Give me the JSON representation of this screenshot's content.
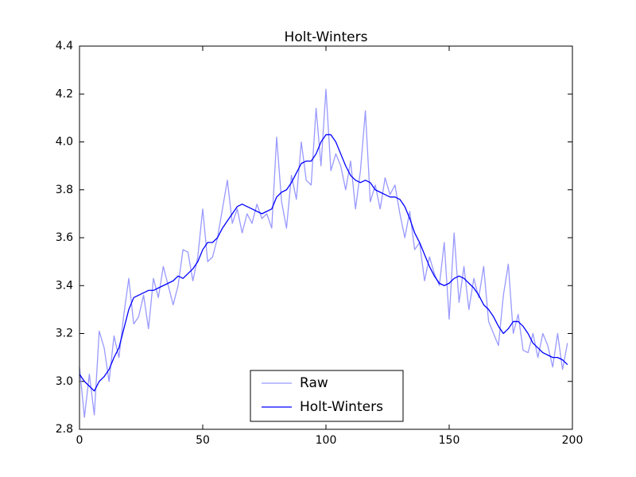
{
  "chart_data": {
    "type": "line",
    "title": "Holt-Winters",
    "x": [
      0,
      2,
      4,
      6,
      8,
      10,
      12,
      14,
      16,
      18,
      20,
      22,
      24,
      26,
      28,
      30,
      32,
      34,
      36,
      38,
      40,
      42,
      44,
      46,
      48,
      50,
      52,
      54,
      56,
      58,
      60,
      62,
      64,
      66,
      68,
      70,
      72,
      74,
      76,
      78,
      80,
      82,
      84,
      86,
      88,
      90,
      92,
      94,
      96,
      98,
      100,
      102,
      104,
      106,
      108,
      110,
      112,
      114,
      116,
      118,
      120,
      122,
      124,
      126,
      128,
      130,
      132,
      134,
      136,
      138,
      140,
      142,
      144,
      146,
      148,
      150,
      152,
      154,
      156,
      158,
      160,
      162,
      164,
      166,
      168,
      170,
      172,
      174,
      176,
      178,
      180,
      182,
      184,
      186,
      188,
      190,
      192,
      194,
      196,
      198
    ],
    "series": [
      {
        "name": "Raw",
        "color": "#9999ff",
        "values": [
          3.06,
          2.85,
          3.03,
          2.86,
          3.21,
          3.14,
          3.0,
          3.19,
          3.1,
          3.28,
          3.43,
          3.24,
          3.27,
          3.36,
          3.22,
          3.43,
          3.35,
          3.48,
          3.4,
          3.32,
          3.4,
          3.55,
          3.54,
          3.42,
          3.52,
          3.72,
          3.5,
          3.52,
          3.6,
          3.72,
          3.84,
          3.66,
          3.72,
          3.62,
          3.7,
          3.66,
          3.74,
          3.68,
          3.7,
          3.64,
          4.02,
          3.75,
          3.64,
          3.86,
          3.76,
          4.0,
          3.84,
          3.82,
          4.14,
          3.9,
          4.22,
          3.88,
          3.95,
          3.9,
          3.8,
          3.92,
          3.72,
          3.88,
          4.13,
          3.75,
          3.82,
          3.72,
          3.85,
          3.78,
          3.82,
          3.7,
          3.6,
          3.71,
          3.55,
          3.58,
          3.42,
          3.52,
          3.45,
          3.4,
          3.58,
          3.26,
          3.62,
          3.33,
          3.48,
          3.3,
          3.43,
          3.35,
          3.48,
          3.25,
          3.2,
          3.15,
          3.36,
          3.49,
          3.2,
          3.28,
          3.13,
          3.12,
          3.2,
          3.1,
          3.2,
          3.15,
          3.06,
          3.2,
          3.05,
          3.16
        ]
      },
      {
        "name": "Holt-Winters",
        "color": "#0000ff",
        "values": [
          3.03,
          3.0,
          2.98,
          2.96,
          3.0,
          3.02,
          3.05,
          3.1,
          3.14,
          3.22,
          3.3,
          3.35,
          3.36,
          3.37,
          3.38,
          3.38,
          3.39,
          3.4,
          3.41,
          3.42,
          3.44,
          3.43,
          3.45,
          3.47,
          3.5,
          3.55,
          3.58,
          3.58,
          3.6,
          3.64,
          3.67,
          3.7,
          3.73,
          3.74,
          3.73,
          3.72,
          3.71,
          3.7,
          3.71,
          3.72,
          3.77,
          3.79,
          3.8,
          3.83,
          3.87,
          3.91,
          3.92,
          3.92,
          3.95,
          4.0,
          4.03,
          4.03,
          4.0,
          3.95,
          3.9,
          3.86,
          3.84,
          3.83,
          3.84,
          3.83,
          3.8,
          3.79,
          3.78,
          3.77,
          3.77,
          3.76,
          3.73,
          3.68,
          3.62,
          3.58,
          3.53,
          3.48,
          3.44,
          3.41,
          3.4,
          3.41,
          3.43,
          3.44,
          3.43,
          3.41,
          3.39,
          3.36,
          3.32,
          3.3,
          3.27,
          3.23,
          3.2,
          3.22,
          3.25,
          3.25,
          3.23,
          3.2,
          3.16,
          3.14,
          3.12,
          3.11,
          3.1,
          3.1,
          3.09,
          3.07
        ]
      }
    ],
    "xlim": [
      0,
      200
    ],
    "xticks": [
      0,
      50,
      100,
      150,
      200
    ],
    "ylim": [
      2.8,
      4.4
    ],
    "yticks": [
      2.8,
      {
        "value": 3,
        "label": "3.0"
      },
      3.2,
      3.4,
      3.6,
      3.8,
      {
        "value": 4,
        "label": "4.0"
      },
      4.2,
      4.4
    ],
    "legend": "lower center",
    "grid": false
  }
}
